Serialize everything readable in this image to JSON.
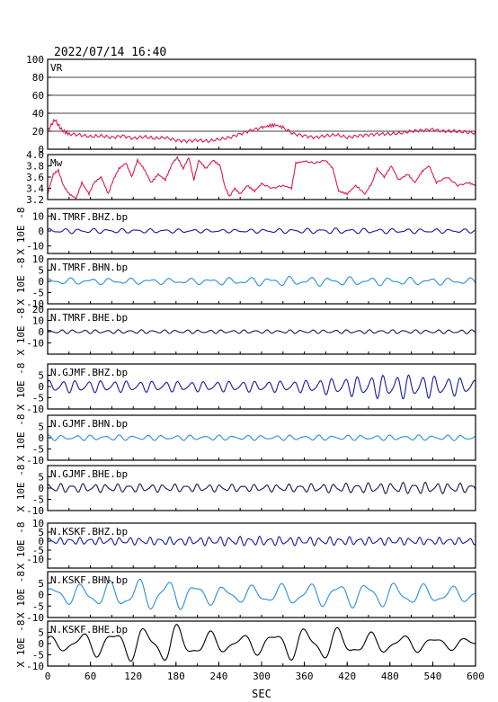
{
  "header": {
    "timestamp": "2022/07/14 16:40"
  },
  "chart_data": {
    "type": "line",
    "xlabel": "SEC",
    "xlim": [
      0,
      600
    ],
    "x_ticks": [
      "0",
      "60",
      "120",
      "180",
      "240",
      "300",
      "360",
      "420",
      "480",
      "540",
      "600"
    ],
    "panels": [
      {
        "name": "VR",
        "ylim": [
          0,
          100
        ],
        "y_ticks": [
          "100",
          "80",
          "60",
          "40",
          "20",
          "0"
        ],
        "ylabel": "",
        "grid": true,
        "color": "#d81b50",
        "series": [
          {
            "t": 0,
            "v": 20
          },
          {
            "t": 5,
            "v": 27
          },
          {
            "t": 10,
            "v": 33
          },
          {
            "t": 15,
            "v": 27
          },
          {
            "t": 20,
            "v": 21
          },
          {
            "t": 30,
            "v": 17
          },
          {
            "t": 45,
            "v": 16
          },
          {
            "t": 60,
            "v": 14
          },
          {
            "t": 75,
            "v": 15
          },
          {
            "t": 90,
            "v": 13
          },
          {
            "t": 105,
            "v": 15
          },
          {
            "t": 120,
            "v": 12
          },
          {
            "t": 135,
            "v": 14
          },
          {
            "t": 150,
            "v": 12
          },
          {
            "t": 165,
            "v": 13
          },
          {
            "t": 180,
            "v": 10
          },
          {
            "t": 195,
            "v": 9
          },
          {
            "t": 210,
            "v": 10
          },
          {
            "t": 225,
            "v": 9
          },
          {
            "t": 240,
            "v": 11
          },
          {
            "t": 255,
            "v": 13
          },
          {
            "t": 270,
            "v": 17
          },
          {
            "t": 285,
            "v": 21
          },
          {
            "t": 300,
            "v": 24
          },
          {
            "t": 310,
            "v": 26
          },
          {
            "t": 320,
            "v": 27
          },
          {
            "t": 330,
            "v": 24
          },
          {
            "t": 345,
            "v": 17
          },
          {
            "t": 360,
            "v": 15
          },
          {
            "t": 375,
            "v": 13
          },
          {
            "t": 390,
            "v": 15
          },
          {
            "t": 405,
            "v": 16
          },
          {
            "t": 420,
            "v": 13
          },
          {
            "t": 435,
            "v": 15
          },
          {
            "t": 450,
            "v": 16
          },
          {
            "t": 465,
            "v": 17
          },
          {
            "t": 480,
            "v": 17
          },
          {
            "t": 495,
            "v": 18
          },
          {
            "t": 510,
            "v": 20
          },
          {
            "t": 525,
            "v": 21
          },
          {
            "t": 540,
            "v": 22
          },
          {
            "t": 555,
            "v": 20
          },
          {
            "t": 570,
            "v": 20
          },
          {
            "t": 585,
            "v": 19
          },
          {
            "t": 600,
            "v": 18
          }
        ]
      },
      {
        "name": "Mw",
        "ylim": [
          3.2,
          4.0
        ],
        "y_ticks": [
          "4.0",
          "3.8",
          "3.6",
          "3.4",
          "3.2"
        ],
        "ylabel": "",
        "grid": false,
        "color": "#d81b50",
        "series": [
          {
            "t": 0,
            "v": 3.3
          },
          {
            "t": 8,
            "v": 3.65
          },
          {
            "t": 15,
            "v": 3.72
          },
          {
            "t": 22,
            "v": 3.45
          },
          {
            "t": 30,
            "v": 3.3
          },
          {
            "t": 40,
            "v": 3.22
          },
          {
            "t": 48,
            "v": 3.5
          },
          {
            "t": 58,
            "v": 3.3
          },
          {
            "t": 65,
            "v": 3.5
          },
          {
            "t": 75,
            "v": 3.6
          },
          {
            "t": 85,
            "v": 3.3
          },
          {
            "t": 92,
            "v": 3.55
          },
          {
            "t": 100,
            "v": 3.75
          },
          {
            "t": 110,
            "v": 3.85
          },
          {
            "t": 118,
            "v": 3.6
          },
          {
            "t": 126,
            "v": 3.9
          },
          {
            "t": 135,
            "v": 3.75
          },
          {
            "t": 145,
            "v": 3.5
          },
          {
            "t": 155,
            "v": 3.65
          },
          {
            "t": 165,
            "v": 3.55
          },
          {
            "t": 175,
            "v": 3.85
          },
          {
            "t": 182,
            "v": 3.95
          },
          {
            "t": 190,
            "v": 3.75
          },
          {
            "t": 198,
            "v": 3.95
          },
          {
            "t": 205,
            "v": 3.55
          },
          {
            "t": 212,
            "v": 3.9
          },
          {
            "t": 222,
            "v": 3.75
          },
          {
            "t": 232,
            "v": 3.9
          },
          {
            "t": 242,
            "v": 3.8
          },
          {
            "t": 248,
            "v": 3.45
          },
          {
            "t": 255,
            "v": 3.25
          },
          {
            "t": 262,
            "v": 3.4
          },
          {
            "t": 270,
            "v": 3.3
          },
          {
            "t": 280,
            "v": 3.45
          },
          {
            "t": 290,
            "v": 3.35
          },
          {
            "t": 300,
            "v": 3.48
          },
          {
            "t": 315,
            "v": 3.4
          },
          {
            "t": 330,
            "v": 3.45
          },
          {
            "t": 342,
            "v": 3.4
          },
          {
            "t": 348,
            "v": 3.85
          },
          {
            "t": 360,
            "v": 3.88
          },
          {
            "t": 375,
            "v": 3.85
          },
          {
            "t": 390,
            "v": 3.9
          },
          {
            "t": 400,
            "v": 3.75
          },
          {
            "t": 408,
            "v": 3.35
          },
          {
            "t": 420,
            "v": 3.3
          },
          {
            "t": 432,
            "v": 3.45
          },
          {
            "t": 445,
            "v": 3.3
          },
          {
            "t": 455,
            "v": 3.5
          },
          {
            "t": 462,
            "v": 3.75
          },
          {
            "t": 472,
            "v": 3.6
          },
          {
            "t": 482,
            "v": 3.8
          },
          {
            "t": 492,
            "v": 3.55
          },
          {
            "t": 505,
            "v": 3.65
          },
          {
            "t": 515,
            "v": 3.5
          },
          {
            "t": 525,
            "v": 3.7
          },
          {
            "t": 535,
            "v": 3.8
          },
          {
            "t": 545,
            "v": 3.5
          },
          {
            "t": 560,
            "v": 3.6
          },
          {
            "t": 575,
            "v": 3.45
          },
          {
            "t": 590,
            "v": 3.5
          },
          {
            "t": 600,
            "v": 3.45
          }
        ]
      },
      {
        "name": "N.TMRF.BHZ.bp",
        "ylim": [
          -15,
          15
        ],
        "y_ticks": [
          "10",
          "0",
          "-10"
        ],
        "ylabel": "X 10E -8",
        "grid": false,
        "color": "#1a1aa0",
        "waves": [
          {
            "a": 1.2,
            "p": 20,
            "ph": 0.3
          },
          {
            "a": 0.6,
            "p": 13,
            "ph": 1.2
          }
        ],
        "envelope": [
          {
            "t": 0,
            "v": 1
          },
          {
            "t": 100,
            "v": 0.9
          },
          {
            "t": 250,
            "v": 0.7
          },
          {
            "t": 400,
            "v": 1.1
          },
          {
            "t": 600,
            "v": 0.8
          }
        ]
      },
      {
        "name": "N.TMRF.BHN.bp",
        "ylim": [
          -10,
          10
        ],
        "y_ticks": [
          "10",
          "5",
          "0",
          "-5",
          "-10"
        ],
        "ylabel": "X 10E -8",
        "grid": false,
        "color": "#2a8fd4",
        "waves": [
          {
            "a": 1.0,
            "p": 28,
            "ph": 0.7
          },
          {
            "a": 0.6,
            "p": 17,
            "ph": 2.1
          }
        ],
        "envelope": [
          {
            "t": 0,
            "v": 1
          },
          {
            "t": 200,
            "v": 0.9
          },
          {
            "t": 330,
            "v": 1.4
          },
          {
            "t": 420,
            "v": 1.3
          },
          {
            "t": 600,
            "v": 1
          }
        ]
      },
      {
        "name": "N.TMRF.BHE.bp",
        "ylim": [
          -20,
          20
        ],
        "y_ticks": [
          "20",
          "10",
          "0",
          "-10"
        ],
        "ylabel": "X 10E -8",
        "grid": false,
        "color": "#1a1a4a",
        "waves": [
          {
            "a": 1.3,
            "p": 16,
            "ph": 0.2
          },
          {
            "a": 0.5,
            "p": 11,
            "ph": 1.7
          }
        ],
        "envelope": [
          {
            "t": 0,
            "v": 1
          },
          {
            "t": 300,
            "v": 0.9
          },
          {
            "t": 600,
            "v": 1
          }
        ]
      },
      {
        "name": "N.GJMF.BHZ.bp",
        "ylim": [
          -10,
          10
        ],
        "y_ticks": [
          "5",
          "0",
          "-5",
          "-10"
        ],
        "ylabel": "X 10E -8",
        "grid": false,
        "color": "#1a1aa0",
        "waves": [
          {
            "a": 2.2,
            "p": 18,
            "ph": 0.5
          },
          {
            "a": 0.8,
            "p": 12,
            "ph": 1.1
          }
        ],
        "envelope": [
          {
            "t": 0,
            "v": 1
          },
          {
            "t": 200,
            "v": 0.8
          },
          {
            "t": 350,
            "v": 0.9
          },
          {
            "t": 460,
            "v": 1.8
          },
          {
            "t": 520,
            "v": 1.9
          },
          {
            "t": 600,
            "v": 1.2
          }
        ]
      },
      {
        "name": "N.GJMF.BHN.bp",
        "ylim": [
          -10,
          10
        ],
        "y_ticks": [
          "5",
          "0",
          "-5",
          "-10"
        ],
        "ylabel": "X 10E -8",
        "grid": false,
        "color": "#2a8fd4",
        "waves": [
          {
            "a": 0.9,
            "p": 20,
            "ph": 1.5
          },
          {
            "a": 0.4,
            "p": 14,
            "ph": 0.4
          }
        ],
        "envelope": [
          {
            "t": 0,
            "v": 1
          },
          {
            "t": 300,
            "v": 0.9
          },
          {
            "t": 600,
            "v": 1
          }
        ]
      },
      {
        "name": "N.GJMF.BHE.bp",
        "ylim": [
          -10,
          10
        ],
        "y_ticks": [
          "5",
          "0",
          "-5",
          "-10"
        ],
        "ylabel": "X 10E -8",
        "grid": false,
        "color": "#1a1a4a",
        "waves": [
          {
            "a": 1.5,
            "p": 16,
            "ph": 0.8
          },
          {
            "a": 0.6,
            "p": 10,
            "ph": 2.2
          }
        ],
        "envelope": [
          {
            "t": 0,
            "v": 1
          },
          {
            "t": 300,
            "v": 0.8
          },
          {
            "t": 520,
            "v": 1.3
          },
          {
            "t": 600,
            "v": 1
          }
        ]
      },
      {
        "name": "N.KSKF.BHZ.bp",
        "ylim": [
          -15,
          10
        ],
        "y_ticks": [
          "10",
          "5",
          "0",
          "-5",
          "-10"
        ],
        "ylabel": "X 10E -8",
        "grid": false,
        "color": "#1a1aa0",
        "waves": [
          {
            "a": 1.4,
            "p": 14,
            "ph": 0.1
          },
          {
            "a": 0.6,
            "p": 9,
            "ph": 1.4
          }
        ],
        "envelope": [
          {
            "t": 0,
            "v": 1
          },
          {
            "t": 200,
            "v": 1.2
          },
          {
            "t": 260,
            "v": 1.4
          },
          {
            "t": 600,
            "v": 1
          }
        ]
      },
      {
        "name": "N.KSKF.BHN.bp",
        "ylim": [
          -10,
          10
        ],
        "y_ticks": [
          "5",
          "0",
          "-5",
          "-10"
        ],
        "ylabel": "X 10E -8",
        "grid": false,
        "color": "#2a8fd4",
        "waves": [
          {
            "a": 4.0,
            "p": 40,
            "ph": 0.4
          },
          {
            "a": 1.5,
            "p": 22,
            "ph": 1.9
          }
        ],
        "envelope": [
          {
            "t": 0,
            "v": 0.7
          },
          {
            "t": 100,
            "v": 1.2
          },
          {
            "t": 160,
            "v": 1.4
          },
          {
            "t": 250,
            "v": 0.7
          },
          {
            "t": 380,
            "v": 1.0
          },
          {
            "t": 460,
            "v": 1.1
          },
          {
            "t": 600,
            "v": 0.6
          }
        ]
      },
      {
        "name": "N.KSKF.BHE.bp",
        "ylim": [
          -10,
          10
        ],
        "y_ticks": [
          "5",
          "0",
          "-5",
          "-10"
        ],
        "ylabel": "X 10E -8",
        "grid": false,
        "color": "#000000",
        "waves": [
          {
            "a": 4.5,
            "p": 45,
            "ph": 1.2
          },
          {
            "a": 1.8,
            "p": 25,
            "ph": 0.3
          }
        ],
        "envelope": [
          {
            "t": 0,
            "v": 0.5
          },
          {
            "t": 100,
            "v": 1.2
          },
          {
            "t": 170,
            "v": 1.5
          },
          {
            "t": 260,
            "v": 0.6
          },
          {
            "t": 370,
            "v": 1.4
          },
          {
            "t": 460,
            "v": 0.8
          },
          {
            "t": 600,
            "v": 0.4
          }
        ]
      }
    ]
  }
}
